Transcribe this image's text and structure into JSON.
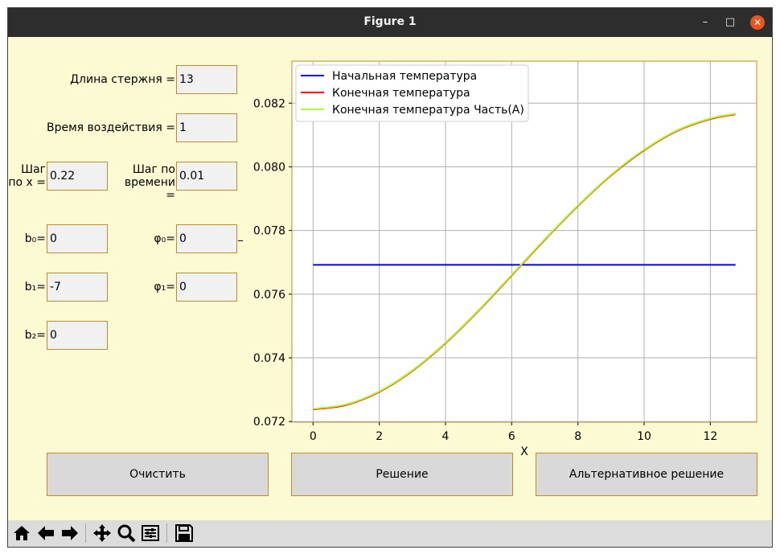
{
  "window": {
    "title": "Figure 1",
    "controls": [
      "minimize-icon",
      "maximize-icon",
      "close-icon"
    ]
  },
  "form": {
    "rod_length": {
      "label": "Длина стержня =",
      "value": "13"
    },
    "duration": {
      "label": "Время воздействия =",
      "value": "1"
    },
    "step_x": {
      "label_line1": "Шаг",
      "label_line2": "по x =",
      "value": "0.22"
    },
    "step_t": {
      "label_line1": "Шаг по",
      "label_line2": "времени =",
      "value": "0.01"
    },
    "b0": {
      "label": "b₀=",
      "value": "0"
    },
    "b1": {
      "label": "b₁=",
      "value": "-7"
    },
    "b2": {
      "label": "b₂=",
      "value": "0"
    },
    "phi0": {
      "label": "φ₀=",
      "value": "0"
    },
    "phi1": {
      "label": "φ₁=",
      "value": "0"
    }
  },
  "buttons": {
    "clear": "Очистить",
    "solve": "Решение",
    "alt_solve": "Альтернативное решение"
  },
  "toolbar": [
    "home-icon",
    "back-icon",
    "forward-icon",
    "pan-icon",
    "zoom-icon",
    "configure-icon",
    "save-icon"
  ],
  "chart_data": {
    "type": "line",
    "xlabel": "X",
    "ylabel": "",
    "xlim": [
      -0.64,
      13.4
    ],
    "ylim": [
      0.07198,
      0.08332
    ],
    "xticks": [
      0,
      2,
      4,
      6,
      8,
      10,
      12
    ],
    "yticks": [
      0.072,
      0.074,
      0.076,
      0.078,
      0.08,
      0.082
    ],
    "ytick_labels": [
      "0.072",
      "0.074",
      "0.076",
      "0.078",
      "0.080",
      "0.082"
    ],
    "grid": true,
    "legend": "top-left",
    "series": [
      {
        "name": "Начальная температура",
        "color": "#0000ff",
        "x": [
          0,
          12.76
        ],
        "y": [
          0.07692,
          0.07692
        ]
      },
      {
        "name": "Конечная температура",
        "color": "#ff0000",
        "x": [
          0,
          1,
          2,
          3,
          4,
          5,
          6,
          6.1,
          7,
          8,
          9,
          10,
          11,
          12,
          12.76
        ],
        "y": [
          0.07238,
          0.07252,
          0.07293,
          0.07359,
          0.07446,
          0.07548,
          0.07659,
          0.0767,
          0.07771,
          0.07877,
          0.07973,
          0.08052,
          0.08113,
          0.0815,
          0.08165
        ]
      },
      {
        "name": "Конечная температура Часть(A)",
        "color": "#adff2f",
        "x": [
          0,
          1,
          2,
          3,
          4,
          5,
          6,
          6.1,
          7,
          8,
          9,
          10,
          11,
          12,
          12.76
        ],
        "y": [
          0.0724,
          0.07254,
          0.07295,
          0.07361,
          0.07448,
          0.0755,
          0.07661,
          0.07672,
          0.07773,
          0.07879,
          0.07975,
          0.08054,
          0.08115,
          0.08152,
          0.08167
        ]
      }
    ]
  }
}
